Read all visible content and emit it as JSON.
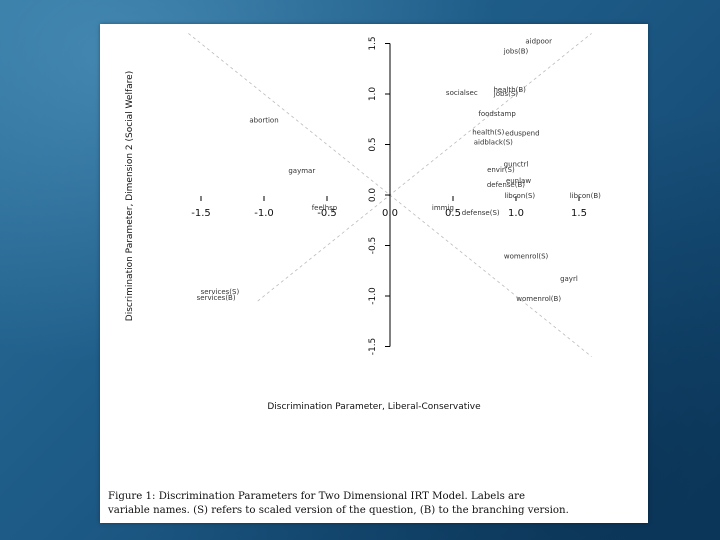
{
  "caption": {
    "line1": "Figure 1: Discrimination Parameters for Two Dimensional IRT Model. Labels are",
    "line2": "variable names. (S) refers to scaled version of the question, (B) to the branching version."
  },
  "chart_data": {
    "type": "scatter",
    "title": "",
    "xlabel": "Discrimination Parameter, Liberal-Conservative",
    "ylabel": "Discrimination Parameter, Dimension 2 (Social Welfare)",
    "xlim": [
      -1.85,
      1.85
    ],
    "ylim": [
      -1.65,
      1.65
    ],
    "x_ticks": [
      "-1.5",
      "-1.0",
      "-0.5",
      "0.0",
      "0.5",
      "1.0",
      "1.5"
    ],
    "y_ticks": [
      "-1.5",
      "-1.0",
      "-0.5",
      "0.0",
      "0.5",
      "1.0",
      "1.5"
    ],
    "grid": false,
    "reference_lines": "y = x and y = -x (dashed)",
    "points": [
      {
        "label": "aidpoor",
        "x": 1.18,
        "y": 1.5
      },
      {
        "label": "jobs(B)",
        "x": 1.0,
        "y": 1.4
      },
      {
        "label": "health(B)",
        "x": 0.95,
        "y": 1.02
      },
      {
        "label": "socialsec",
        "x": 0.57,
        "y": 0.99
      },
      {
        "label": "jobs(S)",
        "x": 0.92,
        "y": 0.98
      },
      {
        "label": "foodstamp",
        "x": 0.85,
        "y": 0.78
      },
      {
        "label": "abortion",
        "x": -1.0,
        "y": 0.72
      },
      {
        "label": "health(S)",
        "x": 0.78,
        "y": 0.6
      },
      {
        "label": "eduspend",
        "x": 1.05,
        "y": 0.59
      },
      {
        "label": "aidblack(S)",
        "x": 0.82,
        "y": 0.5
      },
      {
        "label": "gunctrl",
        "x": 1.0,
        "y": 0.28
      },
      {
        "label": "envir(S)",
        "x": 0.88,
        "y": 0.23
      },
      {
        "label": "gaymar",
        "x": -0.7,
        "y": 0.22
      },
      {
        "label": "eunlaw",
        "x": 1.02,
        "y": 0.12
      },
      {
        "label": "defense(B)",
        "x": 0.92,
        "y": 0.08
      },
      {
        "label": "libcon(S)",
        "x": 1.03,
        "y": -0.03
      },
      {
        "label": "libcon(B)",
        "x": 1.55,
        "y": -0.03
      },
      {
        "label": "feelhsp",
        "x": -0.52,
        "y": -0.15
      },
      {
        "label": "immig",
        "x": 0.42,
        "y": -0.15
      },
      {
        "label": "defense(S)",
        "x": 0.72,
        "y": -0.2
      },
      {
        "label": "womenrol(S)",
        "x": 1.08,
        "y": -0.63
      },
      {
        "label": "gayrl",
        "x": 1.42,
        "y": -0.85
      },
      {
        "label": "services(S)",
        "x": -1.35,
        "y": -0.98
      },
      {
        "label": "services(B)",
        "x": -1.38,
        "y": -1.04
      },
      {
        "label": "womenrol(B)",
        "x": 1.18,
        "y": -1.05
      }
    ]
  }
}
